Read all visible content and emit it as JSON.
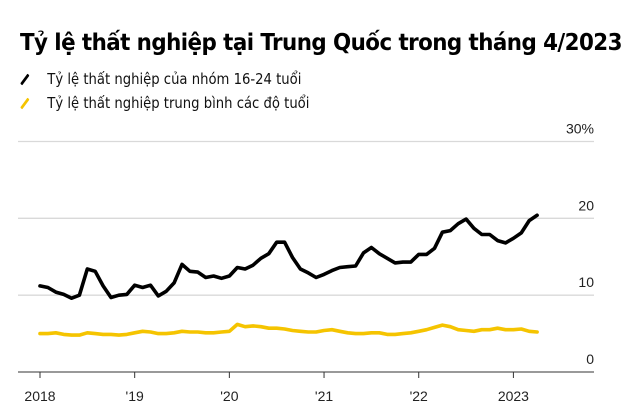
{
  "chart_data": {
    "type": "line",
    "title": "Tỷ lệ thất nghiệp tại Trung Quốc trong tháng 4/2023",
    "x_start": "2018-01",
    "x_end": "2023-04",
    "x_frequency": "monthly",
    "x_tick_labels": [
      "2018",
      "'19",
      "'20",
      "'21",
      "'22",
      "2023"
    ],
    "y_tick_labels": [
      "0",
      "10",
      "20",
      "30%"
    ],
    "ylim": [
      0,
      30
    ],
    "grid": true,
    "legend_position": "top-left",
    "series": [
      {
        "name": "Tỷ lệ thất nghiệp của nhóm 16-24 tuổi",
        "color": "#000000",
        "values": [
          11.2,
          11.0,
          10.4,
          10.1,
          9.6,
          10.0,
          13.4,
          13.1,
          11.2,
          9.7,
          10.0,
          10.1,
          11.3,
          11.0,
          11.3,
          9.9,
          10.5,
          11.6,
          14.0,
          13.1,
          13.0,
          12.3,
          12.5,
          12.2,
          12.5,
          13.6,
          13.4,
          13.9,
          14.8,
          15.4,
          16.9,
          16.9,
          14.9,
          13.4,
          12.9,
          12.3,
          12.7,
          13.2,
          13.6,
          13.7,
          13.8,
          15.5,
          16.2,
          15.4,
          14.8,
          14.2,
          14.3,
          14.3,
          15.3,
          15.3,
          16.1,
          18.2,
          18.4,
          19.3,
          19.9,
          18.7,
          17.9,
          17.9,
          17.1,
          16.8,
          17.4,
          18.1,
          19.7,
          20.4
        ]
      },
      {
        "name": "Tỷ lệ thất nghiệp trung bình các độ tuổi",
        "color": "#f5c400",
        "values": [
          5.0,
          5.0,
          5.1,
          4.9,
          4.8,
          4.8,
          5.1,
          5.0,
          4.9,
          4.9,
          4.8,
          4.9,
          5.1,
          5.3,
          5.2,
          5.0,
          5.0,
          5.1,
          5.3,
          5.2,
          5.2,
          5.1,
          5.1,
          5.2,
          5.3,
          6.2,
          5.9,
          6.0,
          5.9,
          5.7,
          5.7,
          5.6,
          5.4,
          5.3,
          5.2,
          5.2,
          5.4,
          5.5,
          5.3,
          5.1,
          5.0,
          5.0,
          5.1,
          5.1,
          4.9,
          4.9,
          5.0,
          5.1,
          5.3,
          5.5,
          5.8,
          6.1,
          5.9,
          5.5,
          5.4,
          5.3,
          5.5,
          5.5,
          5.7,
          5.5,
          5.5,
          5.6,
          5.3,
          5.2
        ]
      }
    ]
  }
}
